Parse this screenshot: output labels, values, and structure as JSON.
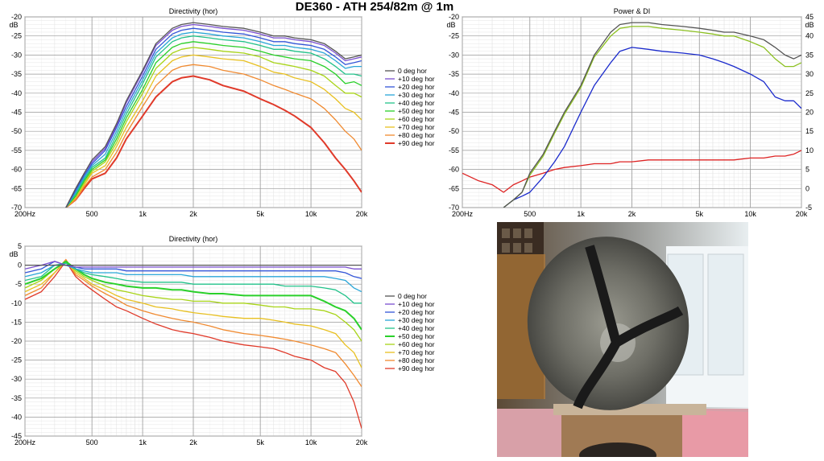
{
  "main_title": "DE360 - ATH 254/82m @ 1m",
  "colors": {
    "grid_major": "#9a9a9a",
    "grid_minor": "#dcdcdc",
    "series": [
      "#555555",
      "#7a4fd0",
      "#3355d8",
      "#2aa6d8",
      "#22c28a",
      "#2ad02a",
      "#a8d418",
      "#e8c020",
      "#f08a30",
      "#e03a2a"
    ],
    "power": "#555555",
    "power_di": "#8cc020",
    "di_blue": "#1a2acc",
    "di_red": "#dd2222"
  },
  "photo": {
    "description_icon": "speaker-photo",
    "caption": ""
  },
  "chart_data": [
    {
      "id": "directivity-abs",
      "type": "line",
      "title": "Directivity (hor)",
      "xscale": "log",
      "xlim": [
        200,
        20000
      ],
      "xticks": [
        {
          "v": 200,
          "l": "200Hz"
        },
        {
          "v": 500,
          "l": "500"
        },
        {
          "v": 1000,
          "l": "1k"
        },
        {
          "v": 2000,
          "l": "2k"
        },
        {
          "v": 5000,
          "l": "5k"
        },
        {
          "v": 10000,
          "l": "10k"
        },
        {
          "v": 20000,
          "l": "20k"
        }
      ],
      "ylim": [
        -70,
        -20
      ],
      "yticks": [
        -20,
        -25,
        -30,
        -35,
        -40,
        -45,
        -50,
        -55,
        -60,
        -65,
        -70
      ],
      "yunit": "dB",
      "legend": [
        "0 deg hor",
        "+10 deg hor",
        "+20 deg hor",
        "+30 deg hor",
        "+40 deg hor",
        "+50 deg hor",
        "+60 deg hor",
        "+70 deg hor",
        "+80 deg hor",
        "+90 deg hor"
      ],
      "x": [
        350,
        400,
        450,
        500,
        600,
        700,
        800,
        1000,
        1200,
        1500,
        1700,
        2000,
        2500,
        3000,
        4000,
        5000,
        6000,
        7000,
        8000,
        10000,
        12000,
        14000,
        16000,
        18000,
        20000
      ],
      "series": [
        {
          "name": "0 deg hor",
          "values": [
            -70,
            -65,
            -61,
            -57.5,
            -54,
            -48,
            -42,
            -34,
            -27,
            -23,
            -22,
            -21.5,
            -22,
            -22.5,
            -23,
            -24,
            -25,
            -25,
            -25.5,
            -26,
            -27,
            -29,
            -31,
            -30.5,
            -30
          ]
        },
        {
          "name": "+10 deg hor",
          "values": [
            -70,
            -65,
            -61,
            -58,
            -54.5,
            -48.5,
            -42.5,
            -34.5,
            -27.5,
            -23.5,
            -22.5,
            -22,
            -22.5,
            -23,
            -23.5,
            -24.5,
            -25.5,
            -25.5,
            -26,
            -26.5,
            -27.5,
            -29.5,
            -31.5,
            -31,
            -30.5
          ]
        },
        {
          "name": "+20 deg hor",
          "values": [
            -70,
            -65.5,
            -61.5,
            -58.5,
            -55,
            -49,
            -43.5,
            -35.5,
            -28.5,
            -24.5,
            -23.5,
            -23,
            -23.5,
            -24,
            -24.5,
            -25.5,
            -26.5,
            -26.5,
            -27,
            -27.5,
            -28.5,
            -30.5,
            -32.5,
            -32,
            -31.5
          ]
        },
        {
          "name": "+30 deg hor",
          "values": [
            -70,
            -66,
            -62,
            -59,
            -56,
            -50,
            -44.5,
            -36.5,
            -29.5,
            -25.5,
            -24.5,
            -24,
            -24.5,
            -25,
            -25.5,
            -26.5,
            -27.5,
            -27.5,
            -28,
            -28.5,
            -29.5,
            -31.5,
            -33.5,
            -33,
            -33
          ]
        },
        {
          "name": "+40 deg hor",
          "values": [
            -70,
            -66.5,
            -62.5,
            -59.5,
            -57,
            -51,
            -45.5,
            -37.5,
            -30.5,
            -26.5,
            -25.5,
            -25,
            -25.5,
            -26,
            -26.5,
            -27.5,
            -28.5,
            -28.5,
            -29,
            -29.5,
            -31,
            -33,
            -35,
            -35,
            -35.5
          ]
        },
        {
          "name": "+50 deg hor",
          "values": [
            -70,
            -67,
            -63,
            -60,
            -57.5,
            -52,
            -46.5,
            -39,
            -32,
            -28,
            -27,
            -26.5,
            -27,
            -27.5,
            -28,
            -29,
            -30,
            -30.5,
            -31,
            -31.5,
            -33,
            -35,
            -37.5,
            -37,
            -38
          ]
        },
        {
          "name": "+60 deg hor",
          "values": [
            -70,
            -67,
            -63.5,
            -60.5,
            -58,
            -53,
            -47.5,
            -40,
            -33.5,
            -29.5,
            -28.5,
            -28,
            -28.5,
            -29,
            -29.5,
            -30.5,
            -32,
            -32.5,
            -33,
            -34,
            -35.5,
            -38,
            -40,
            -40,
            -41
          ]
        },
        {
          "name": "+70 deg hor",
          "values": [
            -70,
            -67.5,
            -64,
            -61,
            -59,
            -54,
            -49,
            -42,
            -35.5,
            -31.5,
            -30.5,
            -30,
            -30.5,
            -31,
            -31.5,
            -33,
            -34.5,
            -35,
            -36,
            -37,
            -39,
            -41.5,
            -44,
            -45,
            -47
          ]
        },
        {
          "name": "+80 deg hor",
          "values": [
            -70,
            -68,
            -64.5,
            -62,
            -60,
            -55.5,
            -50.5,
            -43.5,
            -38,
            -34,
            -33,
            -32.5,
            -33,
            -34,
            -35,
            -36.5,
            -38,
            -39,
            -40,
            -41.5,
            -44,
            -47,
            -50,
            -52,
            -55
          ]
        },
        {
          "name": "+90 deg hor",
          "values": [
            -70,
            -68,
            -65,
            -62.5,
            -61,
            -57,
            -52,
            -46,
            -41,
            -37,
            -36,
            -35.5,
            -36.5,
            -38,
            -39.5,
            -41.5,
            -43,
            -44.5,
            -46,
            -49,
            -53,
            -57,
            -60,
            -63,
            -66
          ]
        }
      ]
    },
    {
      "id": "power-di",
      "type": "line",
      "title": "Power & DI",
      "xscale": "log",
      "xlim": [
        200,
        20000
      ],
      "xticks": [
        {
          "v": 200,
          "l": "200Hz"
        },
        {
          "v": 500,
          "l": "500"
        },
        {
          "v": 1000,
          "l": "1k"
        },
        {
          "v": 2000,
          "l": "2k"
        },
        {
          "v": 5000,
          "l": "5k"
        },
        {
          "v": 10000,
          "l": "10k"
        },
        {
          "v": 20000,
          "l": "20k"
        }
      ],
      "ylim": [
        -70,
        -20
      ],
      "yticks": [
        -20,
        -25,
        -30,
        -35,
        -40,
        -45,
        -50,
        -55,
        -60,
        -65,
        -70
      ],
      "yunit": "dB",
      "y2lim": [
        -5,
        45
      ],
      "y2ticks": [
        45,
        40,
        35,
        30,
        25,
        20,
        15,
        10,
        5,
        0,
        -5
      ],
      "y2unit": "dB",
      "x": [
        200,
        250,
        300,
        350,
        400,
        450,
        500,
        600,
        700,
        800,
        1000,
        1200,
        1500,
        1700,
        2000,
        2500,
        3000,
        4000,
        5000,
        6000,
        7000,
        8000,
        10000,
        12000,
        14000,
        16000,
        18000,
        20000
      ],
      "series": [
        {
          "name": "",
          "color_key": "power",
          "axis": "left",
          "values": [
            null,
            null,
            null,
            -70,
            -68,
            -66,
            -61,
            -56,
            -50,
            -45,
            -38,
            -30,
            -24,
            -22,
            -21.5,
            -21.5,
            -22,
            -22.5,
            -23,
            -23.5,
            -24,
            -24,
            -25,
            -26,
            -28,
            -30,
            -31,
            -30
          ]
        },
        {
          "name": "",
          "color_key": "power_di",
          "axis": "left",
          "values": [
            null,
            null,
            null,
            -70,
            -68,
            -66,
            -61.5,
            -56.5,
            -50.5,
            -45.5,
            -38.5,
            -30.5,
            -25,
            -23,
            -22.5,
            -22.5,
            -23,
            -23.5,
            -24,
            -24.5,
            -25,
            -25,
            -26.5,
            -28,
            -31,
            -33,
            -33,
            -32
          ]
        },
        {
          "name": "",
          "color_key": "di_blue",
          "axis": "left",
          "values": [
            null,
            null,
            null,
            -70,
            -68,
            -67,
            -66,
            -62,
            -58,
            -54,
            -45,
            -38,
            -32,
            -29,
            -28,
            -28.5,
            -29,
            -29.5,
            -30,
            -31,
            -32,
            -33,
            -35,
            -37,
            -41,
            -42,
            -42,
            -44
          ]
        },
        {
          "name": "",
          "color_key": "di_red",
          "axis": "right",
          "values": [
            4,
            2,
            1,
            -1,
            1,
            2,
            3,
            4,
            5,
            5.5,
            6,
            6.5,
            6.5,
            7,
            7,
            7.5,
            7.5,
            7.5,
            7.5,
            7.5,
            7.5,
            7.5,
            8,
            8,
            8.5,
            8.5,
            9,
            10
          ]
        }
      ]
    },
    {
      "id": "directivity-norm",
      "type": "line",
      "title": "Directivity (hor)",
      "xscale": "log",
      "xlim": [
        200,
        20000
      ],
      "xticks": [
        {
          "v": 200,
          "l": "200Hz"
        },
        {
          "v": 500,
          "l": "500"
        },
        {
          "v": 1000,
          "l": "1k"
        },
        {
          "v": 2000,
          "l": "2k"
        },
        {
          "v": 5000,
          "l": "5k"
        },
        {
          "v": 10000,
          "l": "10k"
        },
        {
          "v": 20000,
          "l": "20k"
        }
      ],
      "ylim": [
        -45,
        5
      ],
      "yticks": [
        5,
        0,
        -5,
        -10,
        -15,
        -20,
        -25,
        -30,
        -35,
        -40,
        -45
      ],
      "yunit": "dB",
      "legend": [
        "0 deg hor",
        "+10 deg hor",
        "+20 deg hor",
        "+30 deg hor",
        "+40 deg hor",
        "+50 deg hor",
        "+60 deg hor",
        "+70 deg hor",
        "+80 deg hor",
        "+90 deg hor"
      ],
      "x": [
        200,
        250,
        300,
        350,
        400,
        450,
        500,
        600,
        700,
        800,
        1000,
        1200,
        1500,
        1700,
        2000,
        2500,
        3000,
        4000,
        5000,
        6000,
        7000,
        8000,
        10000,
        12000,
        14000,
        16000,
        18000,
        20000
      ],
      "series": [
        {
          "name": "0 deg hor",
          "values": [
            0,
            0,
            0,
            0,
            0,
            0,
            0,
            0,
            0,
            0,
            0,
            0,
            0,
            0,
            0,
            0,
            0,
            0,
            0,
            0,
            0,
            0,
            0,
            0,
            0,
            0,
            0,
            0
          ]
        },
        {
          "name": "+10 deg hor",
          "values": [
            -1,
            0,
            1,
            0,
            -0.5,
            -0.5,
            -0.5,
            -0.5,
            -0.5,
            -0.5,
            -0.5,
            -0.5,
            -0.5,
            -0.5,
            -0.5,
            -0.5,
            -0.5,
            -0.5,
            -0.5,
            -0.5,
            -0.5,
            -0.5,
            -0.5,
            -0.5,
            -0.5,
            -0.5,
            -1,
            -1
          ]
        },
        {
          "name": "+20 deg hor",
          "values": [
            -2,
            -1,
            1,
            0,
            -0.5,
            -1,
            -1,
            -1,
            -1,
            -1.5,
            -1.5,
            -1.5,
            -1.5,
            -1.5,
            -1.5,
            -1.5,
            -1.5,
            -1.5,
            -1.5,
            -1.5,
            -1.5,
            -1.5,
            -1.5,
            -1.5,
            -1.5,
            -2,
            -3,
            -3.5
          ]
        },
        {
          "name": "+30 deg hor",
          "values": [
            -3,
            -2,
            0,
            0,
            -1,
            -1.5,
            -2,
            -2,
            -2,
            -2.5,
            -2.5,
            -2.5,
            -2.5,
            -2.5,
            -3,
            -3,
            -3,
            -3,
            -3,
            -3,
            -3,
            -3,
            -3,
            -3,
            -3.5,
            -4,
            -6,
            -7
          ]
        },
        {
          "name": "+40 deg hor",
          "values": [
            -4,
            -3,
            0,
            0.5,
            -1,
            -2,
            -2.5,
            -3,
            -3.5,
            -4,
            -4.5,
            -4.5,
            -4.5,
            -4.5,
            -5,
            -5,
            -5,
            -5,
            -5,
            -5,
            -5.5,
            -5.5,
            -5.5,
            -6,
            -6.5,
            -8,
            -10,
            -10
          ]
        },
        {
          "name": "+50 deg hor",
          "values": [
            -5,
            -3.5,
            -1,
            1,
            -1,
            -2.5,
            -3.5,
            -4.5,
            -5,
            -5.5,
            -6,
            -6,
            -6.5,
            -6.5,
            -7,
            -7.5,
            -7.5,
            -8,
            -8,
            -8,
            -8,
            -8,
            -8,
            -9.5,
            -11,
            -12,
            -14,
            -17
          ]
        },
        {
          "name": "+60 deg hor",
          "values": [
            -6,
            -4,
            -1,
            1,
            -1.5,
            -3,
            -4,
            -5.5,
            -6.5,
            -7,
            -8,
            -8.5,
            -9,
            -9,
            -9.5,
            -9.5,
            -10,
            -10,
            -10.5,
            -11,
            -11,
            -11.5,
            -11.5,
            -12,
            -13,
            -15,
            -17,
            -20
          ]
        },
        {
          "name": "+70 deg hor",
          "values": [
            -7,
            -5,
            -2,
            1,
            -2,
            -3.5,
            -5,
            -6.5,
            -8,
            -9,
            -10,
            -11,
            -11.5,
            -12,
            -12.5,
            -13,
            -13.5,
            -14,
            -14,
            -14.5,
            -15,
            -15.5,
            -16,
            -17,
            -18,
            -21,
            -23,
            -27
          ]
        },
        {
          "name": "+80 deg hor",
          "values": [
            -8,
            -6,
            -2,
            1.5,
            -2.5,
            -4,
            -5.5,
            -7.5,
            -9,
            -10.5,
            -12,
            -13,
            -14,
            -14.5,
            -15,
            -16,
            -17,
            -18,
            -18.5,
            -19,
            -19.5,
            -20,
            -21,
            -22,
            -23,
            -26,
            -29,
            -32
          ]
        },
        {
          "name": "+90 deg hor",
          "values": [
            -9,
            -7,
            -3,
            1,
            -3,
            -5,
            -6.5,
            -9,
            -11,
            -12,
            -14,
            -15.5,
            -17,
            -17.5,
            -18,
            -19,
            -20,
            -21,
            -21.5,
            -22,
            -23,
            -24,
            -25,
            -27,
            -28,
            -31,
            -36,
            -43
          ]
        }
      ]
    }
  ]
}
